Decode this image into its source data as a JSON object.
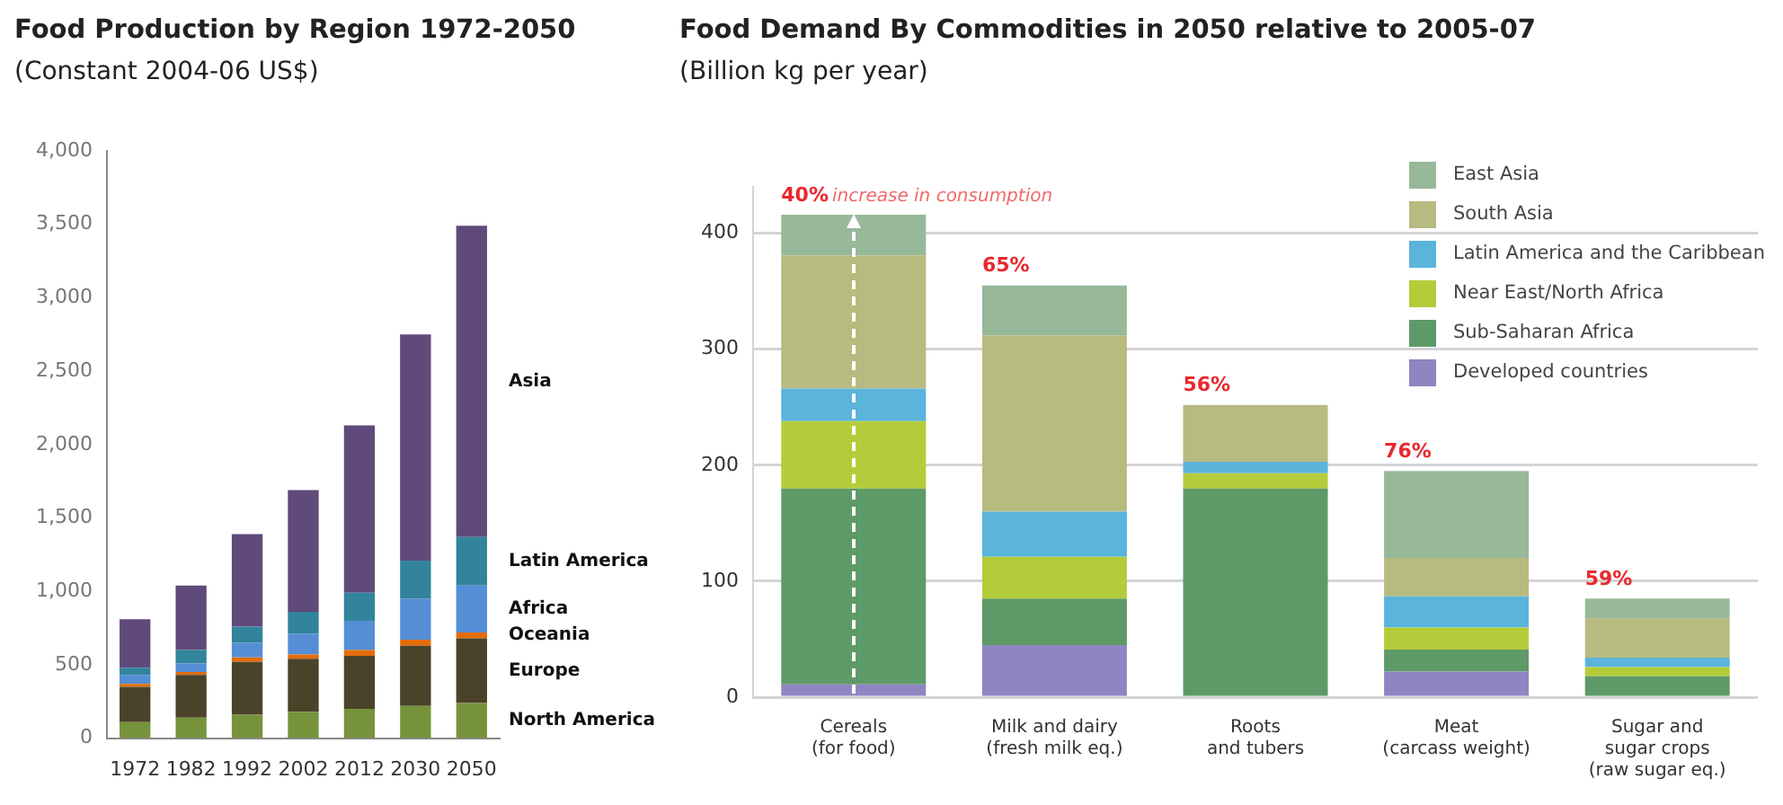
{
  "chart_data": [
    {
      "type": "bar",
      "title": "Food Production by Region 1972-2050",
      "subtitle": "(Constant 2004-06 US$)",
      "categories": [
        "1972",
        "1982",
        "1992",
        "2002",
        "2012",
        "2030",
        "2050"
      ],
      "stacked": true,
      "ylim": [
        0,
        4000
      ],
      "yticks": [
        0,
        {
          "value": 500,
          "label": "500"
        },
        {
          "value": 1000,
          "label": "1,000"
        },
        {
          "value": 1500,
          "label": "1,500"
        },
        {
          "value": 2000,
          "label": "2,000"
        },
        {
          "value": 2500,
          "label": "2,500"
        },
        {
          "value": 3000,
          "label": "3,000"
        },
        {
          "value": 3500,
          "label": "3,500"
        },
        {
          "value": 4000,
          "label": "4,000"
        }
      ],
      "grid": false,
      "series": [
        {
          "name": "North America",
          "color": "#76933c",
          "values": [
            110,
            140,
            160,
            180,
            200,
            220,
            240
          ]
        },
        {
          "name": "Europe",
          "color": "#4a4229",
          "values": [
            240,
            290,
            360,
            360,
            360,
            410,
            440
          ]
        },
        {
          "name": "Oceania",
          "color": "#e46c0a",
          "values": [
            20,
            20,
            30,
            30,
            40,
            40,
            40
          ]
        },
        {
          "name": "Africa",
          "color": "#558ed5",
          "values": [
            60,
            60,
            100,
            140,
            200,
            280,
            320
          ]
        },
        {
          "name": "Latin America",
          "color": "#31849b",
          "values": [
            50,
            90,
            110,
            150,
            190,
            260,
            330
          ]
        },
        {
          "name": "Asia",
          "color": "#604a7b",
          "values": [
            330,
            440,
            630,
            830,
            1140,
            1540,
            2120
          ]
        }
      ]
    },
    {
      "type": "bar",
      "title": "Food Demand By Commodities in 2050 relative to 2005-07",
      "subtitle": "(Billion kg per year)",
      "categories": [
        "Cereals\n(for food)",
        "Milk and dairy\n(fresh milk eq.)",
        "Roots\nand tubers",
        "Meat\n(carcass weight)",
        "Sugar and\nsugar crops\n(raw sugar eq.)"
      ],
      "stacked": true,
      "ylim": [
        0,
        440
      ],
      "yticks": [
        0,
        100,
        200,
        300,
        400
      ],
      "grid": "y",
      "legend": "top right",
      "series": [
        {
          "name": "Developed countries",
          "color": "#8e86c2",
          "values": [
            11,
            45,
            0,
            22,
            0
          ]
        },
        {
          "name": "Sub-Saharan Africa",
          "color": "#5e9a68",
          "values": [
            169,
            40,
            180,
            19,
            18
          ]
        },
        {
          "name": "Near East/North Africa",
          "color": "#b5cc3a",
          "values": [
            58,
            36,
            13,
            19,
            8
          ]
        },
        {
          "name": "Latin America and the Caribbean",
          "color": "#5ab4dc",
          "values": [
            28,
            39,
            10,
            27,
            8
          ]
        },
        {
          "name": "South Asia",
          "color": "#b8bb7f",
          "values": [
            115,
            152,
            49,
            33,
            34
          ]
        },
        {
          "name": "East Asia",
          "color": "#98b89a",
          "values": [
            35,
            43,
            0,
            75,
            17
          ]
        }
      ],
      "annotations": [
        {
          "text": "40% increase in consumption",
          "x": "Cereals\n(for food)",
          "y": 416
        },
        {
          "text": "65%",
          "x": "Milk and dairy\n(fresh milk eq.)",
          "y": 355
        },
        {
          "text": "56%",
          "x": "Roots\nand tubers",
          "y": 252
        },
        {
          "text": "76%",
          "x": "Meat\n(carcass weight)",
          "y": 195
        },
        {
          "text": "59%",
          "x": "Sugar and\nsugar crops\n(raw sugar eq.)",
          "y": 85
        }
      ]
    }
  ]
}
